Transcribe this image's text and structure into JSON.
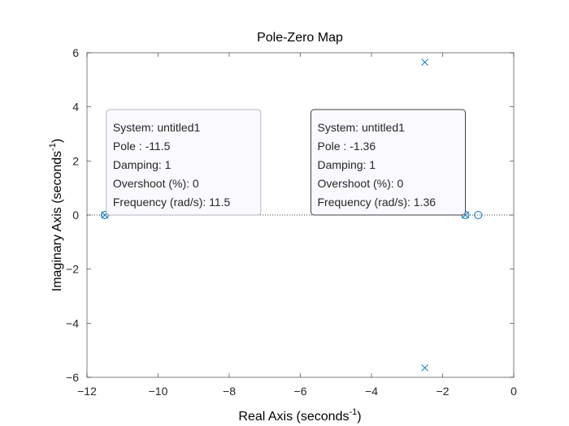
{
  "chart_data": {
    "type": "scatter",
    "title": "Pole-Zero Map",
    "xlabel": {
      "text": "Real Axis (seconds",
      "sup": "-1",
      "close": ")"
    },
    "ylabel": {
      "text": "Imaginary Axis (seconds",
      "sup": "-1",
      "close": ")"
    },
    "xlim": [
      -12,
      0
    ],
    "ylim": [
      -6,
      6
    ],
    "xticks": [
      -12,
      -10,
      -8,
      -6,
      -4,
      -2,
      0
    ],
    "yticks": [
      -6,
      -4,
      -2,
      0,
      2,
      4,
      6
    ],
    "grid": false,
    "series": [
      {
        "marker": "x",
        "points": [
          [
            -2.5,
            5.65
          ],
          [
            -2.5,
            -5.65
          ],
          [
            -11.5,
            0
          ],
          [
            -1.36,
            0
          ]
        ]
      },
      {
        "marker": "o",
        "points": [
          [
            -11.5,
            0
          ],
          [
            -1.36,
            0
          ],
          [
            -1.0,
            0
          ]
        ]
      }
    ],
    "datatips": [
      {
        "lines": [
          "System: untitled1",
          "Pole : -11.5",
          "Damping: 1",
          "Overshoot (%): 0",
          "Frequency (rad/s): 11.5"
        ],
        "anchor": [
          -11.5,
          0
        ],
        "selected": false
      },
      {
        "lines": [
          "System: untitled1",
          "Pole : -1.36",
          "Damping: 1",
          "Overshoot (%): 0",
          "Frequency (rad/s): 1.36"
        ],
        "anchor": [
          -1.36,
          0
        ],
        "selected": true
      }
    ],
    "colors": {
      "marker": "#0072BD",
      "axis": "#262626",
      "tip_fill": "#F8F8FF"
    }
  }
}
